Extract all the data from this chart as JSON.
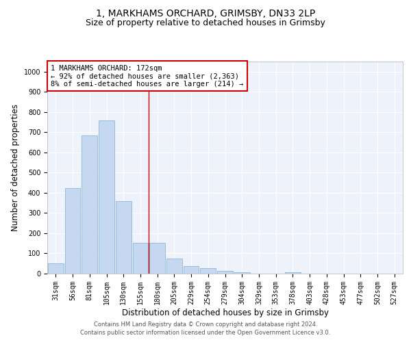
{
  "title_line1": "1, MARKHAMS ORCHARD, GRIMSBY, DN33 2LP",
  "title_line2": "Size of property relative to detached houses in Grimsby",
  "xlabel": "Distribution of detached houses by size in Grimsby",
  "ylabel": "Number of detached properties",
  "footer_line1": "Contains HM Land Registry data © Crown copyright and database right 2024.",
  "footer_line2": "Contains public sector information licensed under the Open Government Licence v3.0.",
  "categories": [
    "31sqm",
    "56sqm",
    "81sqm",
    "105sqm",
    "130sqm",
    "155sqm",
    "180sqm",
    "205sqm",
    "229sqm",
    "254sqm",
    "279sqm",
    "304sqm",
    "329sqm",
    "353sqm",
    "378sqm",
    "403sqm",
    "428sqm",
    "453sqm",
    "477sqm",
    "502sqm",
    "527sqm"
  ],
  "values": [
    50,
    425,
    685,
    760,
    360,
    153,
    153,
    75,
    38,
    27,
    13,
    8,
    0,
    0,
    8,
    0,
    0,
    0,
    0,
    0,
    0
  ],
  "bar_color": "#c5d8f0",
  "bar_edge_color": "#7bafd4",
  "vline_x": 6,
  "vline_color": "#cc0000",
  "annotation_text": "1 MARKHAMS ORCHARD: 172sqm\n← 92% of detached houses are smaller (2,363)\n8% of semi-detached houses are larger (214) →",
  "annotation_box_color": "#ffffff",
  "annotation_box_edge": "#cc0000",
  "ylim": [
    0,
    1050
  ],
  "yticks": [
    0,
    100,
    200,
    300,
    400,
    500,
    600,
    700,
    800,
    900,
    1000
  ],
  "plot_bg_color": "#eef2fa",
  "title_fontsize": 10,
  "subtitle_fontsize": 9,
  "axis_label_fontsize": 8.5,
  "tick_fontsize": 7,
  "annotation_fontsize": 7.5
}
